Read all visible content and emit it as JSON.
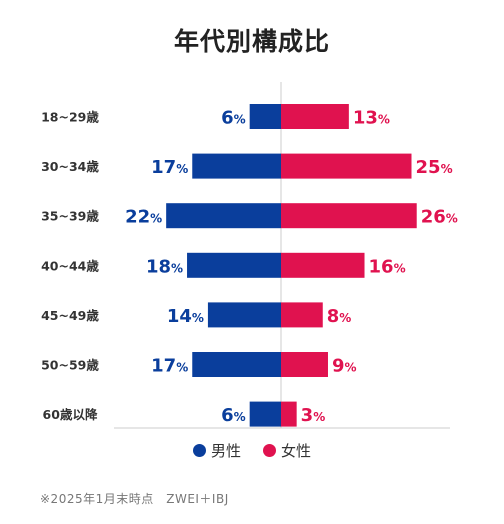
{
  "title": "年代別構成比",
  "legend": {
    "male": "男性",
    "female": "女性"
  },
  "note": "※2025年1月末時点　ZWEI＋IBJ",
  "colors": {
    "male": "#0a3e9c",
    "female": "#e0124f",
    "axis": "#cccccc",
    "label": "#333333"
  },
  "chart_data": {
    "type": "bar",
    "orientation": "horizontal-diverging",
    "title": "年代別構成比",
    "categories": [
      "18~29歳",
      "30~34歳",
      "35~39歳",
      "40~44歳",
      "45~49歳",
      "50~59歳",
      "60歳以降"
    ],
    "series": [
      {
        "name": "男性",
        "values": [
          6,
          17,
          22,
          18,
          14,
          17,
          6
        ],
        "labels": [
          "6%",
          "17%",
          "22%",
          "18%",
          "14%",
          "17%",
          "6%"
        ]
      },
      {
        "name": "女性",
        "values": [
          13,
          25,
          26,
          16,
          8,
          9,
          3
        ],
        "labels": [
          "13%",
          "25%",
          "26%",
          "16%",
          "8%",
          "9%",
          "3%"
        ]
      }
    ],
    "unit": "%",
    "grid": false,
    "legend_position": "bottom"
  }
}
